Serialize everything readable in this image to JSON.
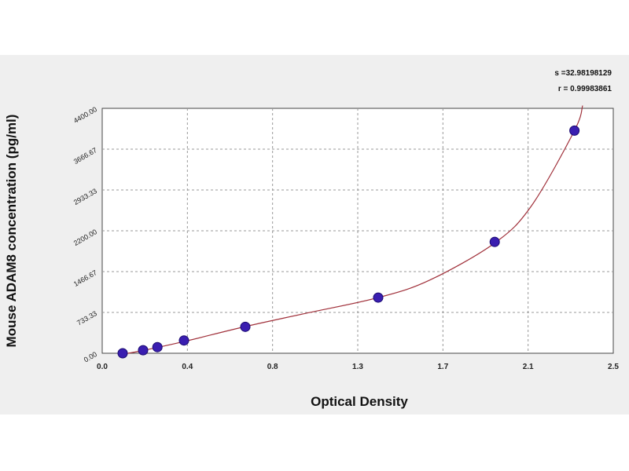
{
  "chart_data": {
    "type": "scatter",
    "xlabel": "Optical Density",
    "ylabel": "Mouse ADAM8 concentration (pg/ml)",
    "xlim": [
      0.0,
      2.5
    ],
    "ylim": [
      0.0,
      4400.0
    ],
    "x_ticks": [
      "0.0",
      "0.4",
      "0.8",
      "1.3",
      "1.7",
      "2.1",
      "2.5"
    ],
    "y_ticks": [
      "0.00",
      "733.33",
      "1466.67",
      "2200.00",
      "2933.33",
      "3666.67",
      "4400.00"
    ],
    "grid": true,
    "legend": "none",
    "stats": [
      "s =32.98198129",
      "r = 0.99983861"
    ],
    "series": [
      {
        "points": [
          {
            "x": 0.1,
            "y": 0
          },
          {
            "x": 0.2,
            "y": 55
          },
          {
            "x": 0.27,
            "y": 110
          },
          {
            "x": 0.4,
            "y": 230
          },
          {
            "x": 0.7,
            "y": 475
          },
          {
            "x": 1.35,
            "y": 1000
          },
          {
            "x": 1.92,
            "y": 2000
          },
          {
            "x": 2.31,
            "y": 4000
          }
        ]
      }
    ],
    "fit_curve": [
      {
        "x": 0.08,
        "y": -30
      },
      {
        "x": 0.2,
        "y": 50
      },
      {
        "x": 0.4,
        "y": 210
      },
      {
        "x": 0.7,
        "y": 480
      },
      {
        "x": 1.0,
        "y": 720
      },
      {
        "x": 1.35,
        "y": 1000
      },
      {
        "x": 1.6,
        "y": 1310
      },
      {
        "x": 1.92,
        "y": 1980
      },
      {
        "x": 2.1,
        "y": 2650
      },
      {
        "x": 2.31,
        "y": 4000
      },
      {
        "x": 2.35,
        "y": 4450
      }
    ],
    "colors": {
      "point": "#3a1eb0",
      "curve": "#a0303a",
      "grid": "#9a9a9a",
      "band": "#efefef"
    }
  }
}
